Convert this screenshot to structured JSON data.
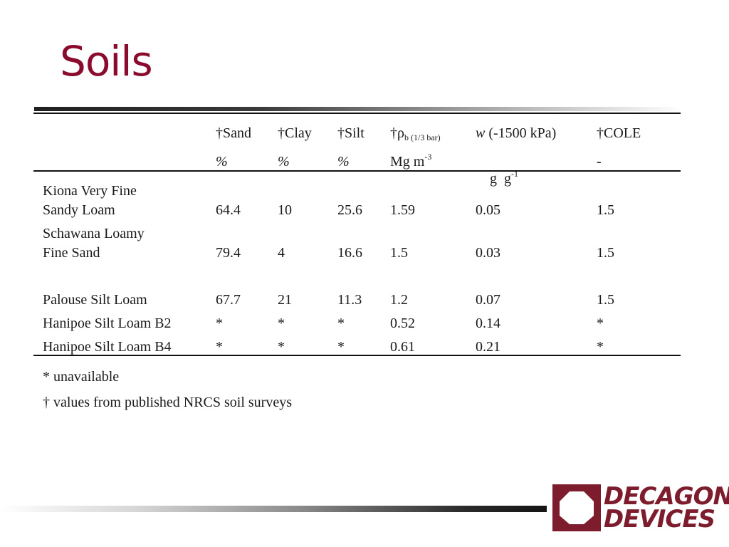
{
  "slide": {
    "title": "Soils"
  },
  "table": {
    "headers": [
      {
        "label": "†Sand",
        "unit": "%"
      },
      {
        "label": "†Clay",
        "unit": "%"
      },
      {
        "label": "†Silt",
        "unit": "%"
      },
      {
        "label_prefix": "†ρ",
        "label_sub": "b (1/3 bar)",
        "unit": "Mg m",
        "unit_sup": "-3"
      },
      {
        "label_italic": "w",
        "label_rest": " (-1500 kPa)",
        "unit": "g  g",
        "unit_sup": "-1"
      },
      {
        "label": "†COLE",
        "unit": "-"
      }
    ],
    "rows": [
      {
        "name_line1": "Kiona Very Fine",
        "name_line2": "Sandy Loam",
        "values": [
          "64.4",
          "10",
          "25.6",
          "1.59",
          "0.05",
          "1.5"
        ]
      },
      {
        "name_line1": "Schawana Loamy",
        "name_line2": "Fine Sand",
        "values": [
          "79.4",
          "4",
          "16.6",
          "1.5",
          "0.03",
          "1.5"
        ]
      },
      {
        "name": "Palouse Silt Loam",
        "values": [
          "67.7",
          "21",
          "11.3",
          "1.2",
          "0.07",
          "1.5"
        ]
      },
      {
        "name": "Hanipoe Silt Loam B2",
        "values": [
          "*",
          "*",
          "*",
          "0.52",
          "0.14",
          "*"
        ]
      },
      {
        "name": "Hanipoe Silt Loam B4",
        "values": [
          "*",
          "*",
          "*",
          "0.61",
          "0.21",
          "*"
        ]
      }
    ]
  },
  "notes": [
    "* unavailable",
    "† values from published NRCS soil surveys"
  ],
  "logo": {
    "line1": "DECAGON",
    "line2": "DEVICES",
    "color": "#7d1c2c"
  },
  "colors": {
    "title": "#8b0b2e"
  }
}
